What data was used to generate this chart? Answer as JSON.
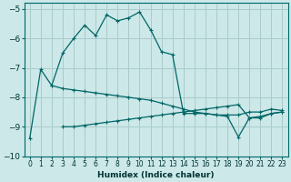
{
  "xlabel": "Humidex (Indice chaleur)",
  "bg_color": "#cce8e8",
  "grid_color": "#aacccc",
  "line_color": "#006666",
  "xlim": [
    -0.5,
    23.5
  ],
  "ylim": [
    -10.0,
    -4.8
  ],
  "xticks": [
    0,
    1,
    2,
    3,
    4,
    5,
    6,
    7,
    8,
    9,
    10,
    11,
    12,
    13,
    14,
    15,
    16,
    17,
    18,
    19,
    20,
    21,
    22,
    23
  ],
  "yticks": [
    -10,
    -9,
    -8,
    -7,
    -6,
    -5
  ],
  "curve1_x": [
    0,
    1,
    2,
    3,
    4,
    5,
    6,
    7,
    8,
    9,
    10,
    11,
    12,
    13,
    14,
    15,
    16,
    17,
    18,
    19,
    20,
    21,
    22,
    23
  ],
  "curve1_y": [
    -9.4,
    -7.05,
    -7.6,
    -6.5,
    -6.0,
    -5.55,
    -5.9,
    -5.2,
    -5.4,
    -5.3,
    -5.1,
    -5.7,
    -6.45,
    -6.55,
    -8.55,
    -8.55,
    -8.55,
    -8.6,
    -8.6,
    -8.6,
    -8.5,
    -8.5,
    -8.4,
    -8.45
  ],
  "curve2_x": [
    2,
    3,
    4,
    5,
    6,
    7,
    8,
    9,
    10,
    11,
    12,
    13,
    14,
    15,
    16,
    17,
    18,
    19,
    20,
    21,
    22,
    23
  ],
  "curve2_y": [
    -7.6,
    -7.7,
    -7.75,
    -7.8,
    -7.85,
    -7.9,
    -7.95,
    -8.0,
    -8.05,
    -8.1,
    -8.2,
    -8.3,
    -8.4,
    -8.5,
    -8.55,
    -8.6,
    -8.65,
    -9.35,
    -8.7,
    -8.7,
    -8.55,
    -8.5
  ],
  "curve3_x": [
    3,
    4,
    5,
    6,
    7,
    8,
    9,
    10,
    11,
    12,
    13,
    14,
    15,
    16,
    17,
    18,
    19,
    20,
    21,
    22,
    23
  ],
  "curve3_y": [
    -9.0,
    -9.0,
    -8.95,
    -8.9,
    -8.85,
    -8.8,
    -8.75,
    -8.7,
    -8.65,
    -8.6,
    -8.55,
    -8.5,
    -8.45,
    -8.4,
    -8.35,
    -8.3,
    -8.25,
    -8.7,
    -8.65,
    -8.55,
    -8.5
  ]
}
